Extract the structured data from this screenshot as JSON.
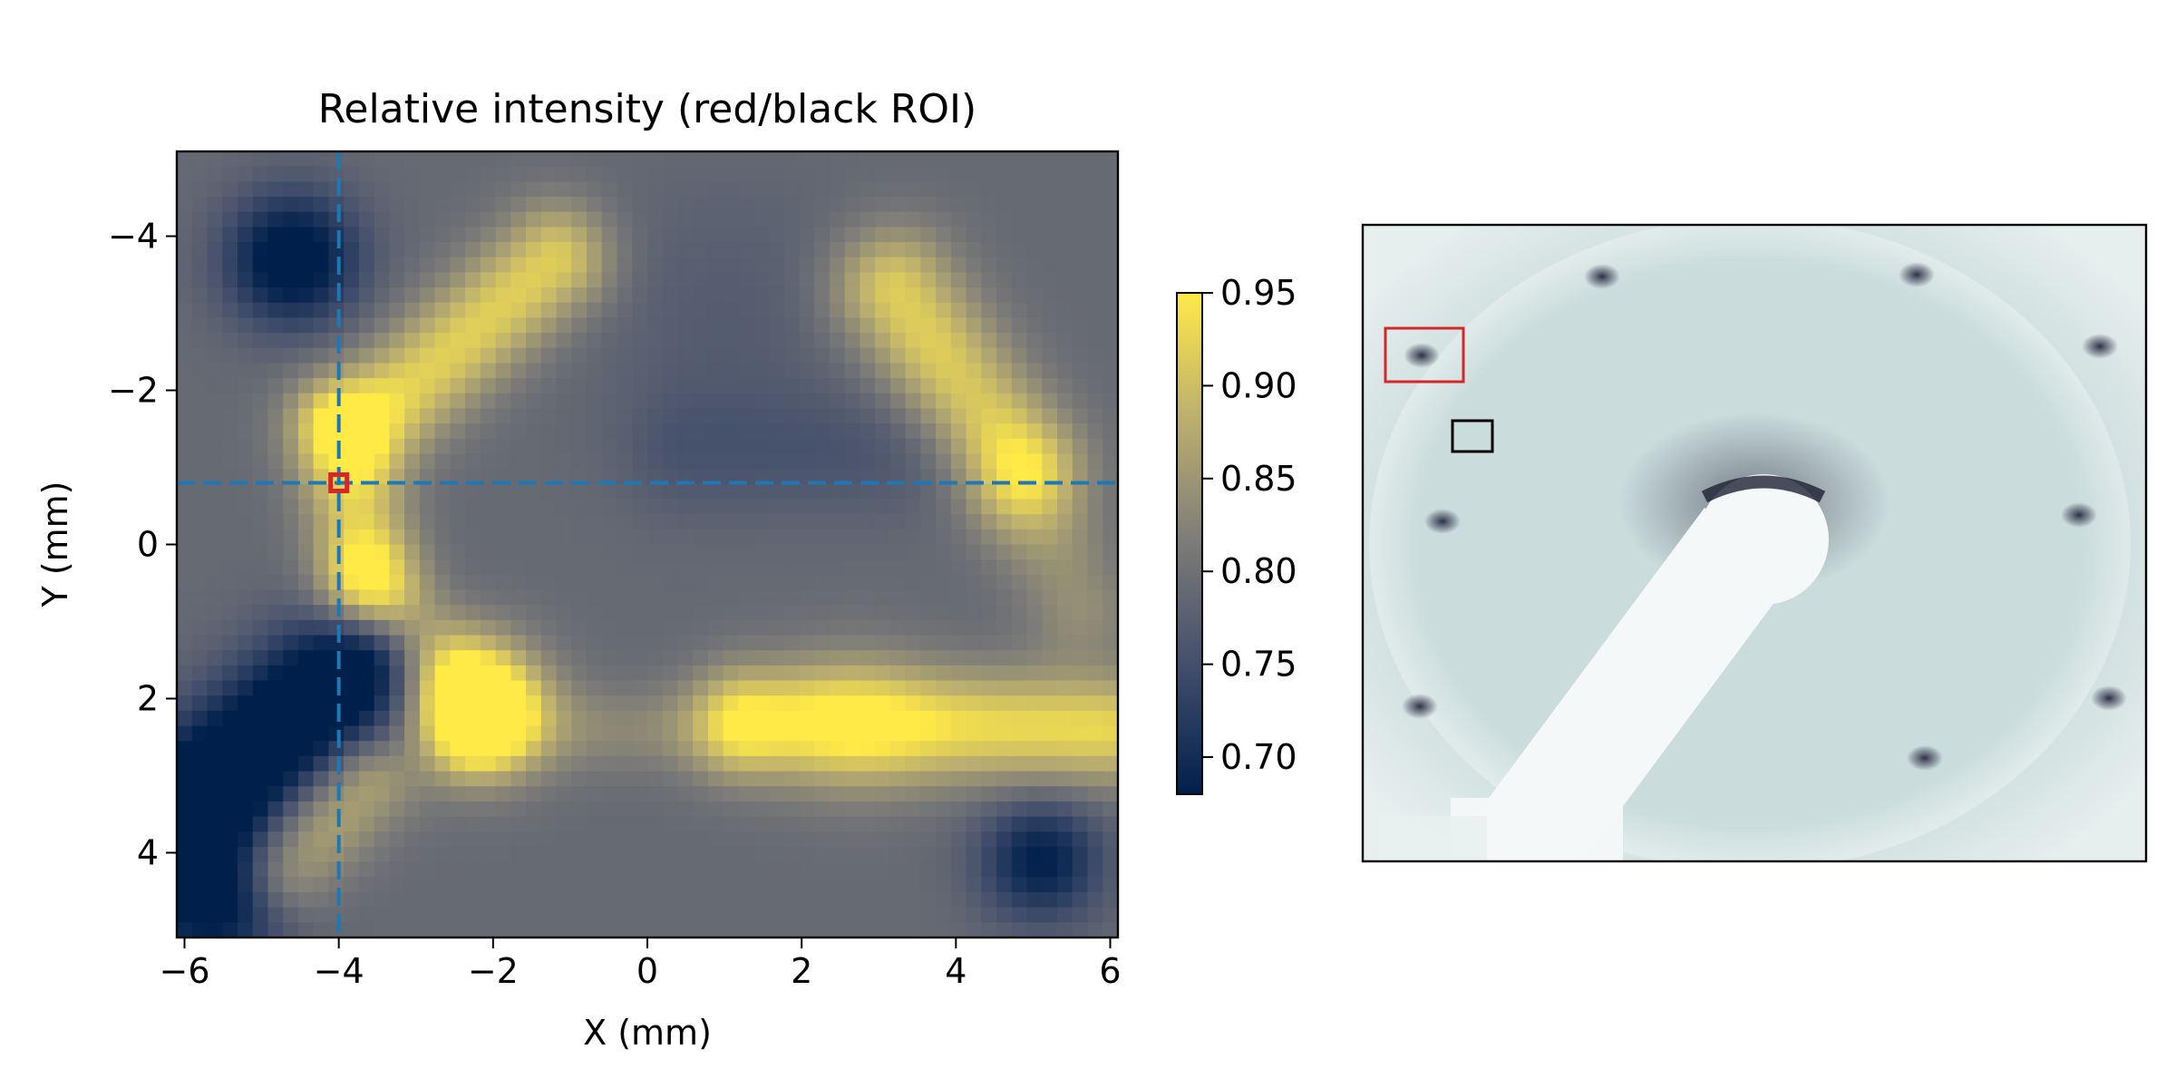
{
  "chart_data": [
    {
      "type": "heatmap",
      "title": "Relative intensity (red/black ROI)",
      "xlabel": "X (mm)",
      "ylabel": "Y (mm)",
      "xlim": [
        -6.1,
        6.1
      ],
      "ylim": [
        5.1,
        -5.1
      ],
      "y_inverted": true,
      "xticks": [
        -6,
        -4,
        -2,
        0,
        2,
        4,
        6
      ],
      "xtick_labels": [
        "−6",
        "−4",
        "−2",
        "0",
        "2",
        "4",
        "6"
      ],
      "yticks": [
        -4,
        -2,
        0,
        2,
        4
      ],
      "ytick_labels": [
        "−4",
        "−2",
        "0",
        "2",
        "4"
      ],
      "grid": false,
      "colormap": "cividis",
      "crosshair": {
        "x": -4.0,
        "y": -0.8,
        "color": "#1f77b4",
        "style": "dashed"
      },
      "marker": {
        "x": -4.0,
        "y": -0.8,
        "shape": "square",
        "color": "#d62728"
      },
      "colorbar": {
        "range": [
          0.68,
          0.95
        ],
        "ticks": [
          0.7,
          0.75,
          0.8,
          0.85,
          0.9,
          0.95
        ],
        "tick_labels": [
          "0.70",
          "0.75",
          "0.80",
          "0.85",
          "0.90",
          "0.95"
        ],
        "colors": [
          "#00204c",
          "#414d6b",
          "#7c7b78",
          "#bcaf6f",
          "#ffea46"
        ]
      },
      "field_model": {
        "base": 0.79,
        "features": [
          {
            "kind": "segment",
            "x1": -3.7,
            "y1": -1.5,
            "x2": -1.2,
            "y2": -3.7,
            "w": 0.5,
            "amp": 0.13
          },
          {
            "kind": "segment",
            "x1": -4.0,
            "y1": -1.5,
            "x2": -3.6,
            "y2": 0.5,
            "w": 0.45,
            "amp": 0.11
          },
          {
            "kind": "segment",
            "x1": -3.6,
            "y1": 0.5,
            "x2": -2.2,
            "y2": 2.2,
            "w": 0.45,
            "amp": 0.12
          },
          {
            "kind": "blob",
            "x": -2.2,
            "y": 2.1,
            "r": 0.6,
            "amp": 0.18
          },
          {
            "kind": "segment",
            "x1": -2.2,
            "y1": 2.4,
            "x2": 1.2,
            "y2": 2.4,
            "w": 0.4,
            "amp": 0.04
          },
          {
            "kind": "segment",
            "x1": 1.3,
            "y1": 2.3,
            "x2": 5.9,
            "y2": 2.4,
            "w": 0.5,
            "amp": 0.14
          },
          {
            "kind": "blob",
            "x": 2.7,
            "y": 2.3,
            "r": 0.7,
            "amp": 0.05
          },
          {
            "kind": "segment",
            "x1": 3.2,
            "y1": -3.3,
            "x2": 4.8,
            "y2": -1.0,
            "w": 0.55,
            "amp": 0.13
          },
          {
            "kind": "segment",
            "x1": 4.8,
            "y1": -1.0,
            "x2": 5.6,
            "y2": 0.8,
            "w": 0.5,
            "amp": 0.05
          },
          {
            "kind": "segment",
            "x1": -4.7,
            "y1": 4.2,
            "x2": -3.7,
            "y2": 3.1,
            "w": 0.45,
            "amp": 0.09
          },
          {
            "kind": "segment",
            "x1": 0.5,
            "y1": -1.2,
            "x2": 4.0,
            "y2": -1.2,
            "w": 0.6,
            "amp": -0.03
          },
          {
            "kind": "blob",
            "x": -4.6,
            "y": -3.7,
            "r": 0.6,
            "amp": -0.14
          },
          {
            "kind": "segment",
            "x1": -6.1,
            "y1": 3.5,
            "x2": -3.6,
            "y2": 1.5,
            "w": 0.65,
            "amp": -0.17
          },
          {
            "kind": "blob",
            "x": -5.6,
            "y": 4.6,
            "r": 0.7,
            "amp": -0.12
          },
          {
            "kind": "blob",
            "x": 5.1,
            "y": 4.1,
            "r": 0.55,
            "amp": -0.11
          },
          {
            "kind": "blob",
            "x": 1.0,
            "y": -3.0,
            "r": 1.2,
            "amp": -0.02
          }
        ]
      }
    },
    {
      "type": "image",
      "description_kind": "diffraction pattern",
      "roi_boxes": [
        {
          "name": "red",
          "color": "#d62728"
        },
        {
          "name": "black",
          "color": "#000000"
        }
      ],
      "background_color": "#cbdcdc",
      "spot_color": "#2c2e44"
    }
  ]
}
